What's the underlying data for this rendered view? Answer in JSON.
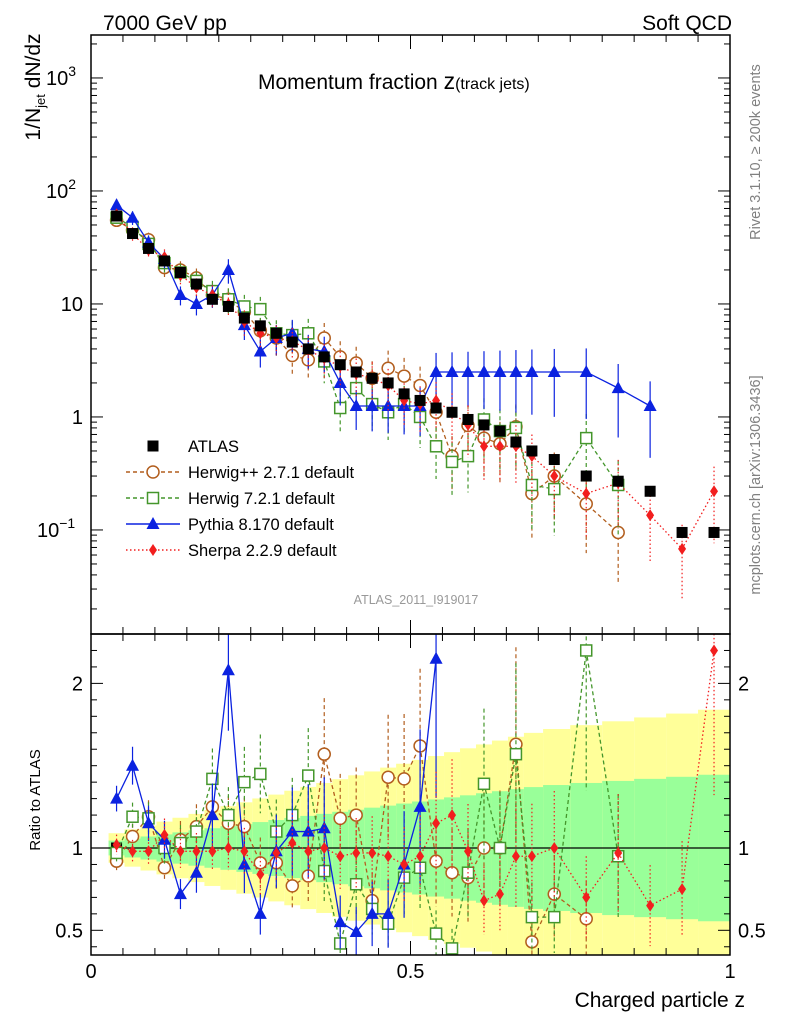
{
  "header": {
    "energy_label": "7000 GeV pp",
    "process_label": "Soft QCD",
    "side_label_top": "Rivet 3.1.10, ≥ 200k events",
    "side_label_bottom": "mcplots.cern.ch [arXiv:1306.3436]",
    "watermark": "ATLAS_2011_I919017",
    "title_main": "Momentum fraction ",
    "title_z": "z",
    "title_sub": "(track jets)"
  },
  "chart_data": [
    {
      "panel": "main",
      "type": "scatter",
      "yscale": "log",
      "ylim": [
        0.012,
        2400
      ],
      "xlim": [
        0,
        1
      ],
      "ylabel": "1/N_jet dN/dz",
      "ylabel_parts": {
        "a": "1/N",
        "sub": "jet",
        "b": " dN/dz"
      },
      "y_ticks": [
        {
          "value": 0.1,
          "label": "10",
          "exp": "−1"
        },
        {
          "value": 1,
          "label": "1",
          "exp": ""
        },
        {
          "value": 10,
          "label": "10",
          "exp": ""
        },
        {
          "value": 100,
          "label": "10",
          "exp": "2"
        },
        {
          "value": 1000,
          "label": "10",
          "exp": "3"
        }
      ],
      "legend": [
        {
          "label": "ATLAS",
          "color": "#000000",
          "marker": "square"
        },
        {
          "label": "Herwig++ 2.7.1 default",
          "color": "#b25e1e",
          "marker": "open-circle"
        },
        {
          "label": "Herwig 7.2.1 default",
          "color": "#44962b",
          "marker": "open-square"
        },
        {
          "label": "Pythia 8.170 default",
          "color": "#0b22e0",
          "marker": "triangle"
        },
        {
          "label": "Sherpa 2.2.9 default",
          "color": "#f21e1e",
          "marker": "diamond"
        }
      ],
      "series": [
        {
          "name": "ATLAS",
          "x": [
            0.04,
            0.065,
            0.09,
            0.115,
            0.14,
            0.165,
            0.19,
            0.215,
            0.24,
            0.265,
            0.29,
            0.315,
            0.34,
            0.365,
            0.39,
            0.415,
            0.44,
            0.465,
            0.49,
            0.515,
            0.54,
            0.565,
            0.59,
            0.615,
            0.64,
            0.665,
            0.69,
            0.725,
            0.775,
            0.825,
            0.875,
            0.925,
            0.975
          ],
          "values": [
            60,
            42,
            31,
            24,
            19,
            15,
            11,
            9.5,
            7.5,
            6.4,
            5.5,
            4.6,
            4.0,
            3.4,
            2.9,
            2.5,
            2.2,
            2.0,
            1.6,
            1.4,
            1.2,
            1.1,
            0.95,
            0.85,
            0.75,
            0.6,
            0.5,
            0.42,
            0.3,
            0.27,
            0.22,
            0.095,
            0.095
          ]
        },
        {
          "name": "Herwig++ 2.7.1 default",
          "x": [
            0.04,
            0.065,
            0.09,
            0.115,
            0.14,
            0.165,
            0.19,
            0.215,
            0.24,
            0.265,
            0.29,
            0.315,
            0.34,
            0.365,
            0.39,
            0.415,
            0.44,
            0.465,
            0.49,
            0.515,
            0.54,
            0.565,
            0.59,
            0.615,
            0.64,
            0.665,
            0.69,
            0.725,
            0.775,
            0.825
          ],
          "values": [
            55,
            45,
            37,
            21,
            20,
            17,
            12,
            11,
            8.5,
            5.8,
            5.0,
            3.5,
            3.2,
            5.0,
            3.4,
            3.0,
            2.2,
            2.7,
            2.3,
            1.9,
            1.1,
            0.45,
            0.84,
            0.65,
            0.58,
            0.82,
            0.21,
            0.3,
            0.17,
            0.095
          ]
        },
        {
          "name": "Herwig 7.2.1 default",
          "x": [
            0.04,
            0.065,
            0.09,
            0.115,
            0.14,
            0.165,
            0.19,
            0.215,
            0.24,
            0.265,
            0.29,
            0.315,
            0.34,
            0.365,
            0.39,
            0.415,
            0.44,
            0.465,
            0.49,
            0.515,
            0.54,
            0.565,
            0.59,
            0.615,
            0.64,
            0.665,
            0.69,
            0.725,
            0.775,
            0.825
          ],
          "values": [
            58,
            48,
            34,
            23,
            19,
            16,
            13,
            11,
            9.5,
            9.0,
            5.5,
            5.3,
            5.5,
            3.1,
            1.2,
            1.8,
            1.3,
            1.1,
            1.3,
            1.0,
            0.55,
            0.4,
            0.45,
            0.95,
            0.75,
            0.8,
            0.25,
            0.23,
            0.65,
            0.25
          ]
        },
        {
          "name": "Pythia 8.170 default",
          "x": [
            0.04,
            0.065,
            0.09,
            0.115,
            0.14,
            0.165,
            0.19,
            0.215,
            0.24,
            0.265,
            0.29,
            0.315,
            0.34,
            0.365,
            0.39,
            0.415,
            0.44,
            0.465,
            0.49,
            0.515,
            0.54,
            0.565,
            0.59,
            0.615,
            0.64,
            0.665,
            0.69,
            0.725,
            0.775,
            0.825,
            0.875
          ],
          "values": [
            75,
            58,
            35,
            25,
            12,
            10,
            12,
            20,
            6.5,
            3.8,
            5.0,
            5.5,
            4.0,
            3.8,
            2.0,
            1.25,
            1.25,
            1.25,
            1.25,
            1.25,
            2.5,
            2.5,
            2.5,
            2.5,
            2.5,
            2.5,
            2.5,
            2.5,
            2.5,
            1.8,
            1.25
          ]
        },
        {
          "name": "Sherpa 2.2.9 default",
          "x": [
            0.04,
            0.065,
            0.09,
            0.115,
            0.14,
            0.165,
            0.19,
            0.215,
            0.24,
            0.265,
            0.29,
            0.315,
            0.34,
            0.365,
            0.39,
            0.415,
            0.44,
            0.465,
            0.49,
            0.515,
            0.54,
            0.565,
            0.59,
            0.615,
            0.64,
            0.665,
            0.69,
            0.725,
            0.775,
            0.825,
            0.875,
            0.925,
            0.975
          ],
          "values": [
            62,
            42,
            30,
            26,
            18,
            14,
            12,
            10,
            7.0,
            5.5,
            5.0,
            4.7,
            3.9,
            3.3,
            2.8,
            2.4,
            2.2,
            1.9,
            1.4,
            1.3,
            1.4,
            1.1,
            0.85,
            0.55,
            0.55,
            0.55,
            0.45,
            0.3,
            0.21,
            0.26,
            0.135,
            0.068,
            0.22
          ]
        }
      ]
    },
    {
      "panel": "ratio",
      "type": "scatter",
      "ylabel": "Ratio to ATLAS",
      "ylim": [
        0.35,
        2.3
      ],
      "xlim": [
        0,
        1
      ],
      "y_ticks": [
        {
          "value": 0.5,
          "label": "0.5"
        },
        {
          "value": 1,
          "label": "1"
        },
        {
          "value": 2,
          "label": "2"
        }
      ],
      "x_ticks": [
        {
          "value": 0,
          "label": "0"
        },
        {
          "value": 0.5,
          "label": "0.5"
        },
        {
          "value": 1,
          "label": "1"
        }
      ],
      "xlabel": "Charged particle z",
      "series": [
        {
          "name": "Herwig++ 2.7.1 default",
          "x": [
            0.04,
            0.065,
            0.09,
            0.115,
            0.14,
            0.165,
            0.19,
            0.215,
            0.24,
            0.265,
            0.29,
            0.315,
            0.34,
            0.365,
            0.39,
            0.415,
            0.44,
            0.465,
            0.49,
            0.515,
            0.54,
            0.565,
            0.59,
            0.615,
            0.64,
            0.665,
            0.69,
            0.725,
            0.775
          ],
          "values": [
            0.92,
            1.07,
            1.19,
            0.88,
            1.05,
            1.13,
            1.25,
            1.15,
            1.13,
            0.91,
            0.91,
            0.77,
            0.83,
            1.57,
            1.18,
            1.2,
            0.68,
            1.43,
            1.42,
            1.62,
            0.92,
            0.85,
            0.82,
            1.0,
            1.0,
            1.63,
            0.43,
            0.72,
            0.57
          ]
        },
        {
          "name": "Herwig 7.2.1 default",
          "x": [
            0.04,
            0.065,
            0.09,
            0.115,
            0.14,
            0.165,
            0.19,
            0.215,
            0.24,
            0.265,
            0.29,
            0.315,
            0.34,
            0.365,
            0.39,
            0.415,
            0.44,
            0.465,
            0.49,
            0.515,
            0.54,
            0.565,
            0.59,
            0.615,
            0.64,
            0.665,
            0.69,
            0.725,
            0.775,
            0.825
          ],
          "values": [
            0.97,
            1.19,
            1.18,
            1.0,
            1.03,
            1.1,
            1.42,
            1.2,
            1.4,
            1.45,
            1.1,
            1.2,
            1.44,
            0.86,
            0.42,
            0.78,
            0.63,
            0.54,
            0.82,
            0.88,
            0.48,
            0.39,
            0.85,
            1.39,
            1.0,
            1.57,
            0.58,
            0.58,
            2.2,
            0.95
          ]
        },
        {
          "name": "Pythia 8.170 default",
          "x": [
            0.04,
            0.065,
            0.09,
            0.115,
            0.14,
            0.165,
            0.19,
            0.215,
            0.24,
            0.265,
            0.29,
            0.315,
            0.34,
            0.365,
            0.39,
            0.415,
            0.44,
            0.465,
            0.49,
            0.515,
            0.54
          ],
          "values": [
            1.3,
            1.5,
            1.15,
            1.05,
            0.72,
            0.85,
            1.2,
            2.08,
            0.9,
            0.6,
            0.98,
            1.1,
            1.1,
            1.12,
            0.55,
            0.49,
            0.6,
            0.6,
            0.9,
            1.25,
            2.15
          ]
        },
        {
          "name": "Sherpa 2.2.9 default",
          "x": [
            0.04,
            0.065,
            0.09,
            0.115,
            0.14,
            0.165,
            0.19,
            0.215,
            0.24,
            0.265,
            0.29,
            0.315,
            0.34,
            0.365,
            0.39,
            0.415,
            0.44,
            0.465,
            0.49,
            0.515,
            0.54,
            0.565,
            0.59,
            0.615,
            0.64,
            0.665,
            0.69,
            0.725,
            0.775,
            0.825,
            0.875,
            0.925,
            0.975
          ],
          "values": [
            1.02,
            0.98,
            0.98,
            1.08,
            0.98,
            0.98,
            0.98,
            1.0,
            0.98,
            0.84,
            0.97,
            1.03,
            0.98,
            1.0,
            0.95,
            0.97,
            0.97,
            0.95,
            0.9,
            0.95,
            1.15,
            1.2,
            0.98,
            0.68,
            0.72,
            0.95,
            0.95,
            1.0,
            0.7,
            0.97,
            0.65,
            0.75,
            2.2
          ]
        }
      ]
    }
  ]
}
